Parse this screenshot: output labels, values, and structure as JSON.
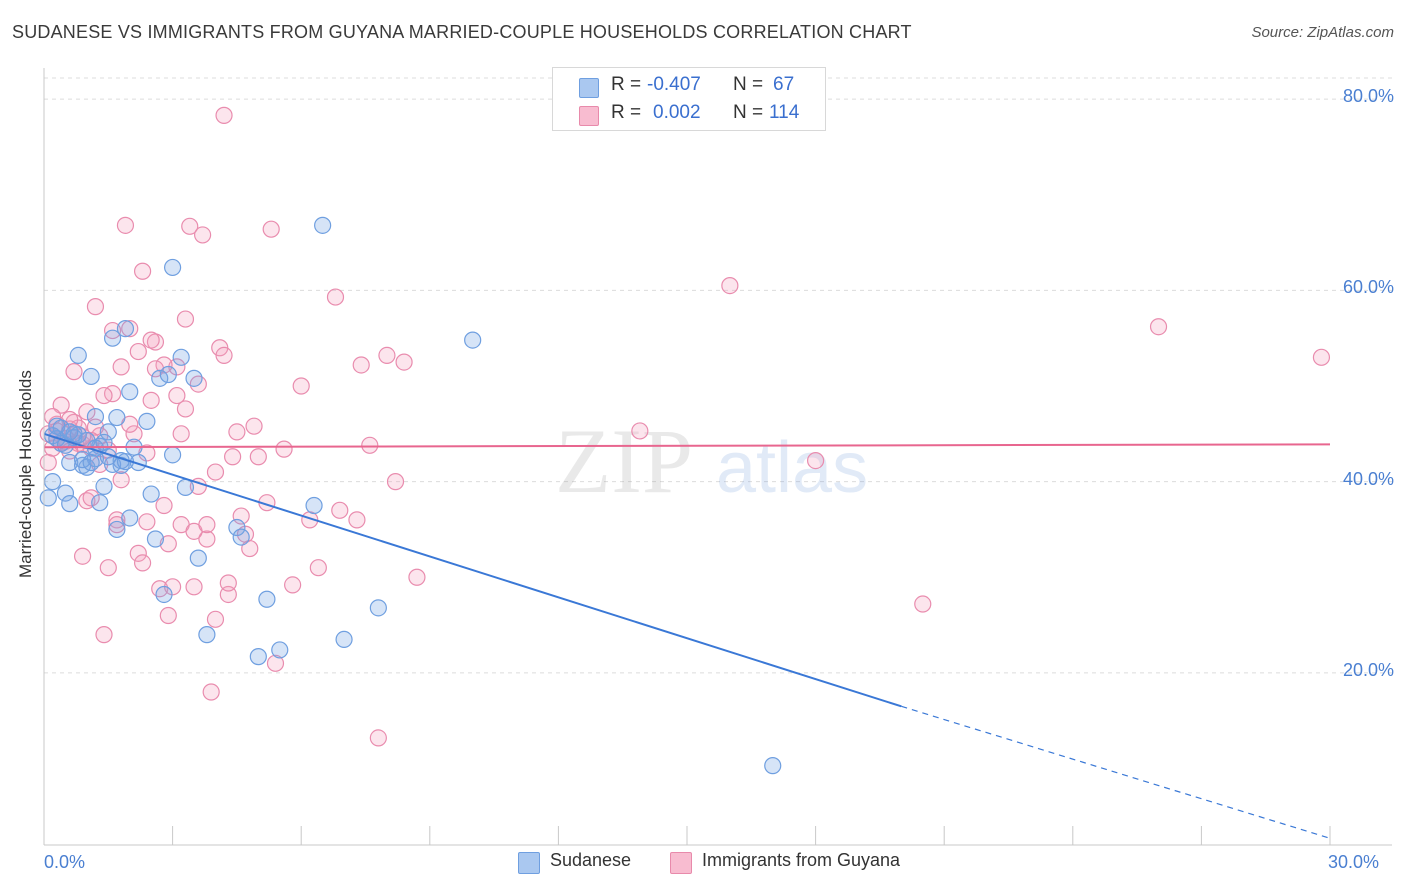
{
  "title": "SUDANESE VS IMMIGRANTS FROM GUYANA MARRIED-COUPLE HOUSEHOLDS CORRELATION CHART",
  "source": "Source: ZipAtlas.com",
  "watermark": {
    "part1": "ZIP",
    "part2": "atlas"
  },
  "legend": {
    "rows": [
      {
        "r_label": "R =",
        "r_value": "-0.407",
        "n_label": "N =",
        "n_value": "67",
        "color": "#aac8f0",
        "border": "#6f9fe0"
      },
      {
        "r_label": "R =",
        "r_value": "0.002",
        "n_label": "N =",
        "n_value": "114",
        "color": "#f8bcd0",
        "border": "#e88aab"
      }
    ]
  },
  "bottom_legend": {
    "series1": "Sudanese",
    "series2": "Immigrants from Guyana"
  },
  "colors": {
    "sudanese_fill": "rgba(120,165,230,0.30)",
    "sudanese_stroke": "#6f9fe0",
    "guyana_fill": "rgba(245,160,190,0.28)",
    "guyana_stroke": "#e98cae",
    "sudanese_line": "#3a78d6",
    "guyana_line": "#e8668f",
    "grid": "#dcdcdc",
    "tick_text": "#4a7fd1"
  },
  "chart_data": {
    "type": "scatter",
    "title": "SUDANESE VS IMMIGRANTS FROM GUYANA MARRIED-COUPLE HOUSEHOLDS CORRELATION CHART",
    "xlabel": "",
    "ylabel": "Married-couple Households",
    "xlim": [
      0,
      30
    ],
    "ylim": [
      2,
      82
    ],
    "x_tick_labels": [
      {
        "value": 0,
        "label": "0.0%"
      },
      {
        "value": 30,
        "label": "30.0%"
      }
    ],
    "y_tick_labels": [
      {
        "value": 20,
        "label": "20.0%"
      },
      {
        "value": 40,
        "label": "40.0%"
      },
      {
        "value": 60,
        "label": "60.0%"
      },
      {
        "value": 80,
        "label": "80.0%"
      }
    ],
    "grid": true,
    "legend_position": "top-center",
    "series": [
      {
        "name": "Sudanese",
        "trend": {
          "x0": 0,
          "y0": 45.0,
          "x1": 20.0,
          "y1": 16.5,
          "dash_to_x": 30.0,
          "dash_to_y": 2.7
        },
        "points": [
          [
            0.1,
            38.3
          ],
          [
            0.2,
            40.0
          ],
          [
            0.3,
            44.5
          ],
          [
            0.4,
            45.6
          ],
          [
            0.5,
            38.8
          ],
          [
            0.6,
            37.7
          ],
          [
            0.6,
            42.0
          ],
          [
            0.7,
            44.6
          ],
          [
            0.8,
            53.2
          ],
          [
            0.9,
            41.7
          ],
          [
            1.0,
            41.5
          ],
          [
            1.1,
            51.0
          ],
          [
            1.2,
            42.4
          ],
          [
            1.2,
            46.8
          ],
          [
            1.3,
            37.8
          ],
          [
            1.4,
            39.5
          ],
          [
            1.5,
            45.2
          ],
          [
            1.6,
            55.0
          ],
          [
            1.7,
            46.7
          ],
          [
            1.7,
            35.0
          ],
          [
            1.8,
            41.7
          ],
          [
            1.9,
            56.0
          ],
          [
            2.0,
            36.2
          ],
          [
            2.0,
            49.4
          ],
          [
            2.1,
            43.6
          ],
          [
            2.2,
            42.0
          ],
          [
            2.4,
            46.3
          ],
          [
            2.5,
            38.7
          ],
          [
            2.6,
            34.0
          ],
          [
            2.7,
            50.8
          ],
          [
            2.8,
            28.2
          ],
          [
            2.9,
            51.2
          ],
          [
            3.0,
            42.8
          ],
          [
            3.0,
            62.4
          ],
          [
            3.2,
            53.0
          ],
          [
            3.3,
            39.4
          ],
          [
            3.5,
            50.8
          ],
          [
            3.6,
            32.0
          ],
          [
            3.8,
            24.0
          ],
          [
            4.5,
            35.2
          ],
          [
            4.6,
            34.2
          ],
          [
            5.0,
            21.7
          ],
          [
            5.2,
            27.7
          ],
          [
            5.5,
            22.4
          ],
          [
            6.3,
            37.5
          ],
          [
            6.5,
            66.8
          ],
          [
            7.0,
            23.5
          ],
          [
            7.8,
            26.8
          ],
          [
            10.0,
            54.8
          ],
          [
            17.0,
            10.3
          ],
          [
            0.2,
            44.8
          ],
          [
            0.4,
            44.0
          ],
          [
            0.9,
            42.3
          ],
          [
            1.1,
            42.0
          ],
          [
            1.3,
            43.7
          ],
          [
            1.6,
            41.8
          ],
          [
            1.8,
            42.2
          ],
          [
            0.5,
            43.8
          ],
          [
            0.7,
            45.0
          ],
          [
            1.0,
            44.3
          ],
          [
            0.3,
            45.8
          ],
          [
            0.8,
            44.9
          ],
          [
            1.5,
            42.6
          ],
          [
            1.9,
            42.1
          ],
          [
            0.6,
            45.2
          ],
          [
            1.2,
            43.5
          ],
          [
            1.4,
            44.1
          ]
        ]
      },
      {
        "name": "Immigrants from Guyana",
        "trend": {
          "x0": 0,
          "y0": 43.6,
          "x1": 30.0,
          "y1": 43.9
        },
        "points": [
          [
            0.1,
            42.0
          ],
          [
            0.2,
            43.5
          ],
          [
            0.3,
            46.0
          ],
          [
            0.4,
            48.0
          ],
          [
            0.5,
            44.5
          ],
          [
            0.6,
            45.5
          ],
          [
            0.7,
            51.5
          ],
          [
            0.8,
            44.0
          ],
          [
            0.9,
            32.2
          ],
          [
            1.0,
            38.0
          ],
          [
            1.1,
            43.5
          ],
          [
            1.2,
            58.3
          ],
          [
            1.3,
            44.8
          ],
          [
            1.4,
            24.0
          ],
          [
            1.5,
            31.0
          ],
          [
            1.6,
            49.2
          ],
          [
            1.7,
            36.0
          ],
          [
            1.8,
            52.0
          ],
          [
            1.9,
            66.8
          ],
          [
            2.0,
            56.0
          ],
          [
            2.1,
            45.0
          ],
          [
            2.2,
            32.5
          ],
          [
            2.3,
            31.5
          ],
          [
            2.4,
            35.8
          ],
          [
            2.5,
            48.5
          ],
          [
            2.6,
            54.6
          ],
          [
            2.7,
            28.8
          ],
          [
            2.8,
            37.5
          ],
          [
            2.9,
            26.0
          ],
          [
            3.0,
            29.0
          ],
          [
            3.1,
            52.0
          ],
          [
            3.2,
            35.5
          ],
          [
            3.3,
            47.6
          ],
          [
            3.4,
            66.7
          ],
          [
            3.5,
            29.0
          ],
          [
            3.6,
            39.5
          ],
          [
            3.7,
            65.8
          ],
          [
            3.8,
            34.0
          ],
          [
            3.9,
            18.0
          ],
          [
            4.0,
            41.0
          ],
          [
            4.1,
            54.0
          ],
          [
            4.2,
            53.2
          ],
          [
            4.3,
            28.2
          ],
          [
            4.4,
            42.6
          ],
          [
            4.5,
            45.2
          ],
          [
            4.7,
            34.5
          ],
          [
            4.8,
            33.0
          ],
          [
            4.9,
            45.8
          ],
          [
            5.0,
            42.6
          ],
          [
            5.2,
            37.8
          ],
          [
            5.3,
            66.4
          ],
          [
            5.4,
            21.0
          ],
          [
            5.6,
            43.4
          ],
          [
            5.8,
            29.2
          ],
          [
            6.0,
            50.0
          ],
          [
            6.2,
            36.0
          ],
          [
            6.4,
            31.0
          ],
          [
            6.8,
            59.3
          ],
          [
            7.3,
            36.0
          ],
          [
            7.4,
            52.2
          ],
          [
            7.6,
            43.8
          ],
          [
            7.8,
            13.2
          ],
          [
            8.0,
            53.2
          ],
          [
            8.2,
            40.0
          ],
          [
            8.4,
            52.5
          ],
          [
            8.7,
            30.0
          ],
          [
            13.9,
            45.3
          ],
          [
            16.0,
            60.5
          ],
          [
            18.0,
            42.2
          ],
          [
            20.5,
            27.2
          ],
          [
            26.0,
            56.2
          ],
          [
            29.8,
            53.0
          ],
          [
            0.3,
            45.3
          ],
          [
            0.5,
            44.2
          ],
          [
            0.7,
            46.2
          ],
          [
            0.9,
            43.9
          ],
          [
            1.2,
            45.7
          ],
          [
            1.5,
            43.3
          ],
          [
            1.8,
            40.2
          ],
          [
            2.0,
            46.0
          ],
          [
            2.2,
            53.6
          ],
          [
            2.5,
            54.8
          ],
          [
            2.8,
            52.2
          ],
          [
            3.2,
            45.0
          ],
          [
            3.5,
            34.8
          ],
          [
            3.8,
            35.5
          ],
          [
            4.0,
            25.6
          ],
          [
            4.3,
            29.4
          ],
          [
            1.0,
            47.3
          ],
          [
            0.2,
            46.8
          ],
          [
            0.4,
            44.0
          ],
          [
            0.6,
            43.2
          ],
          [
            0.8,
            45.6
          ],
          [
            1.1,
            44.3
          ],
          [
            1.4,
            49.0
          ],
          [
            1.7,
            35.5
          ],
          [
            2.4,
            43.0
          ],
          [
            2.9,
            33.5
          ],
          [
            3.3,
            57.0
          ],
          [
            0.1,
            45.0
          ],
          [
            0.3,
            44.5
          ],
          [
            0.6,
            46.5
          ],
          [
            0.9,
            44.7
          ],
          [
            1.3,
            41.8
          ],
          [
            1.6,
            55.8
          ],
          [
            2.6,
            51.8
          ],
          [
            3.1,
            49.0
          ],
          [
            3.6,
            50.2
          ],
          [
            4.2,
            78.3
          ],
          [
            2.3,
            62.0
          ],
          [
            6.9,
            37.0
          ],
          [
            4.6,
            36.4
          ],
          [
            1.1,
            38.3
          ]
        ]
      }
    ]
  }
}
